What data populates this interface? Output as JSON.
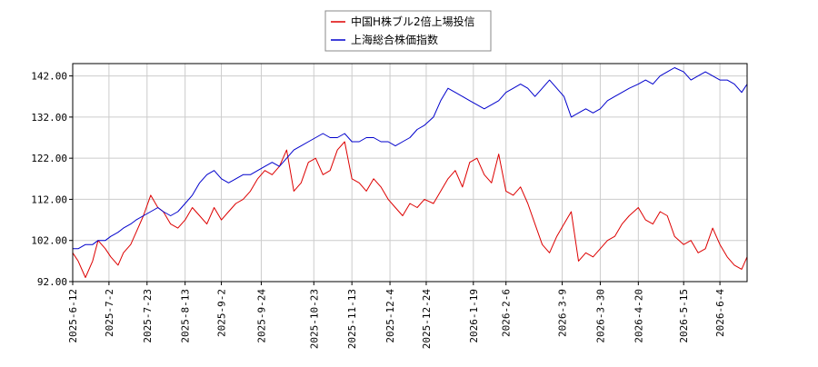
{
  "chart_data": {
    "type": "line",
    "title": "",
    "xlabel": "",
    "ylabel": "",
    "ylim": [
      92.0,
      145.0
    ],
    "yticks": [
      "92.00",
      "102.00",
      "112.00",
      "122.00",
      "132.00",
      "142.00"
    ],
    "ytick_values": [
      92,
      102,
      112,
      122,
      132,
      142
    ],
    "x_start": "2025-06-12",
    "x_end": "2026-06-19",
    "xticks": [
      "2025-6-12",
      "2025-7-2",
      "2025-7-23",
      "2025-8-13",
      "2025-9-2",
      "2025-9-24",
      "2025-10-23",
      "2025-11-13",
      "2025-12-4",
      "2025-12-24",
      "2026-1-19",
      "2026-2-6",
      "2026-3-9",
      "2026-3-30",
      "2026-4-20",
      "2026-5-15",
      "2026-6-4"
    ],
    "grid": true,
    "legend_position": "top-center",
    "series": [
      {
        "name": "中国H株ブル2倍上場投信",
        "color": "#dd0000",
        "x": [
          "2025-06-12",
          "2025-06-15",
          "2025-06-19",
          "2025-06-23",
          "2025-06-26",
          "2025-06-30",
          "2025-07-03",
          "2025-07-07",
          "2025-07-10",
          "2025-07-14",
          "2025-07-17",
          "2025-07-21",
          "2025-07-25",
          "2025-07-29",
          "2025-08-01",
          "2025-08-05",
          "2025-08-09",
          "2025-08-13",
          "2025-08-17",
          "2025-08-21",
          "2025-08-25",
          "2025-08-29",
          "2025-09-02",
          "2025-09-06",
          "2025-09-10",
          "2025-09-14",
          "2025-09-18",
          "2025-09-22",
          "2025-09-26",
          "2025-09-30",
          "2025-10-04",
          "2025-10-08",
          "2025-10-12",
          "2025-10-16",
          "2025-10-20",
          "2025-10-24",
          "2025-10-28",
          "2025-11-01",
          "2025-11-05",
          "2025-11-09",
          "2025-11-13",
          "2025-11-17",
          "2025-11-21",
          "2025-11-25",
          "2025-11-29",
          "2025-12-03",
          "2025-12-07",
          "2025-12-11",
          "2025-12-15",
          "2025-12-19",
          "2025-12-23",
          "2025-12-28",
          "2026-01-01",
          "2026-01-05",
          "2026-01-09",
          "2026-01-13",
          "2026-01-17",
          "2026-01-21",
          "2026-01-25",
          "2026-01-29",
          "2026-02-02",
          "2026-02-06",
          "2026-02-10",
          "2026-02-14",
          "2026-02-18",
          "2026-02-22",
          "2026-02-26",
          "2026-03-02",
          "2026-03-06",
          "2026-03-10",
          "2026-03-14",
          "2026-03-18",
          "2026-03-22",
          "2026-03-26",
          "2026-03-30",
          "2026-04-03",
          "2026-04-07",
          "2026-04-11",
          "2026-04-15",
          "2026-04-20",
          "2026-04-24",
          "2026-04-28",
          "2026-05-02",
          "2026-05-06",
          "2026-05-10",
          "2026-05-15",
          "2026-05-19",
          "2026-05-23",
          "2026-05-27",
          "2026-05-31",
          "2026-06-04",
          "2026-06-08",
          "2026-06-12",
          "2026-06-16",
          "2026-06-19"
        ],
        "values": [
          99,
          97,
          93,
          97,
          102,
          100,
          98,
          96,
          99,
          101,
          104,
          108,
          113,
          110,
          109,
          106,
          105,
          107,
          110,
          108,
          106,
          110,
          107,
          109,
          111,
          112,
          114,
          117,
          119,
          118,
          120,
          124,
          114,
          116,
          121,
          122,
          118,
          119,
          124,
          126,
          117,
          116,
          114,
          117,
          115,
          112,
          110,
          108,
          111,
          110,
          112,
          111,
          114,
          117,
          119,
          115,
          121,
          122,
          118,
          116,
          123,
          114,
          113,
          115,
          111,
          106,
          101,
          99,
          103,
          106,
          109,
          97,
          99,
          98,
          100,
          102,
          103,
          106,
          108,
          110,
          107,
          106,
          109,
          108,
          103,
          101,
          102,
          99,
          100,
          105,
          101,
          98,
          96,
          95,
          98
        ],
        "values_note": ""
      },
      {
        "name": "上海総合株価指数",
        "color": "#0000cc",
        "x": [
          "2025-06-12",
          "2025-06-15",
          "2025-06-19",
          "2025-06-23",
          "2025-06-26",
          "2025-06-30",
          "2025-07-03",
          "2025-07-07",
          "2025-07-10",
          "2025-07-14",
          "2025-07-17",
          "2025-07-21",
          "2025-07-25",
          "2025-07-29",
          "2025-08-01",
          "2025-08-05",
          "2025-08-09",
          "2025-08-13",
          "2025-08-17",
          "2025-08-21",
          "2025-08-25",
          "2025-08-29",
          "2025-09-02",
          "2025-09-06",
          "2025-09-10",
          "2025-09-14",
          "2025-09-18",
          "2025-09-22",
          "2025-09-26",
          "2025-09-30",
          "2025-10-04",
          "2025-10-08",
          "2025-10-12",
          "2025-10-16",
          "2025-10-20",
          "2025-10-24",
          "2025-10-28",
          "2025-11-01",
          "2025-11-05",
          "2025-11-09",
          "2025-11-13",
          "2025-11-17",
          "2025-11-21",
          "2025-11-25",
          "2025-11-29",
          "2025-12-03",
          "2025-12-07",
          "2025-12-11",
          "2025-12-15",
          "2025-12-19",
          "2025-12-23",
          "2025-12-28",
          "2026-01-01",
          "2026-01-05",
          "2026-01-09",
          "2026-01-13",
          "2026-01-17",
          "2026-01-21",
          "2026-01-25",
          "2026-01-29",
          "2026-02-02",
          "2026-02-06",
          "2026-02-10",
          "2026-02-14",
          "2026-02-18",
          "2026-02-22",
          "2026-02-26",
          "2026-03-02",
          "2026-03-06",
          "2026-03-10",
          "2026-03-14",
          "2026-03-18",
          "2026-03-22",
          "2026-03-26",
          "2026-03-30",
          "2026-04-03",
          "2026-04-07",
          "2026-04-11",
          "2026-04-15",
          "2026-04-20",
          "2026-04-24",
          "2026-04-28",
          "2026-05-02",
          "2026-05-06",
          "2026-05-10",
          "2026-05-15",
          "2026-05-19",
          "2026-05-23",
          "2026-05-27",
          "2026-05-31",
          "2026-06-04",
          "2026-06-08",
          "2026-06-12",
          "2026-06-16",
          "2026-06-19"
        ],
        "values": [
          100,
          100,
          101,
          101,
          102,
          102,
          103,
          104,
          105,
          106,
          107,
          108,
          109,
          110,
          109,
          108,
          109,
          111,
          113,
          116,
          118,
          119,
          117,
          116,
          117,
          118,
          118,
          119,
          120,
          121,
          120,
          122,
          124,
          125,
          126,
          127,
          128,
          127,
          127,
          128,
          126,
          126,
          127,
          127,
          126,
          126,
          125,
          126,
          127,
          129,
          130,
          132,
          136,
          139,
          138,
          137,
          136,
          135,
          134,
          135,
          136,
          138,
          139,
          140,
          139,
          137,
          139,
          141,
          139,
          137,
          132,
          133,
          134,
          133,
          134,
          136,
          137,
          138,
          139,
          140,
          141,
          140,
          142,
          143,
          144,
          143,
          141,
          142,
          143,
          142,
          141,
          141,
          140,
          138,
          140
        ],
        "values_note": ""
      }
    ]
  }
}
